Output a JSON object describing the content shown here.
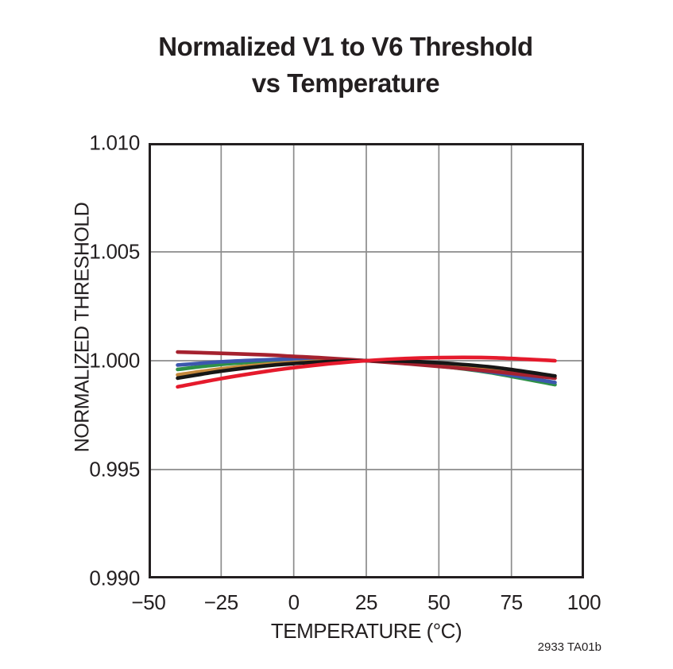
{
  "title": {
    "line1": "Normalized V1 to V6 Threshold",
    "line2": "vs Temperature"
  },
  "footnote": "2933 TA01b",
  "chart_data": {
    "type": "line",
    "title": "Normalized V1 to V6 Threshold vs Temperature",
    "xlabel": "TEMPERATURE (°C)",
    "ylabel": "NORMALIZED THRESHOLD",
    "xlim": [
      -50,
      100
    ],
    "ylim": [
      0.99,
      1.01
    ],
    "x_tick_values": [
      -50,
      -25,
      0,
      25,
      50,
      75,
      100
    ],
    "x_tick_labels": [
      "−50",
      "−25",
      "0",
      "25",
      "50",
      "75",
      "100"
    ],
    "y_tick_values": [
      0.99,
      0.995,
      1.0,
      1.005,
      1.01
    ],
    "y_tick_labels": [
      "0.990",
      "0.995",
      "1.000",
      "1.005",
      "1.010"
    ],
    "grid": true,
    "legend": "none",
    "line_width": 4.6,
    "colors": {
      "frame": "#231F20",
      "grid": "#8C8C8C",
      "text": "#231F20",
      "background": "#FFFFFF"
    },
    "x": [
      -40,
      -25,
      -10,
      0,
      10,
      25,
      40,
      55,
      70,
      90
    ],
    "series": [
      {
        "name": "curve-green",
        "color": "#2E9147",
        "values": [
          0.9996,
          0.99983,
          0.99997,
          1.00002,
          1.00004,
          1.0,
          0.99988,
          0.99968,
          0.9994,
          0.9989
        ]
      },
      {
        "name": "curve-blue",
        "color": "#3C57AE",
        "values": [
          0.9998,
          0.99995,
          1.00004,
          1.00007,
          1.00006,
          1.0,
          0.99988,
          0.99969,
          0.99944,
          0.999
        ]
      },
      {
        "name": "curve-orange",
        "color": "#C4883C",
        "values": [
          0.99935,
          0.99963,
          0.99983,
          0.99992,
          0.99998,
          1.0,
          0.99994,
          0.99981,
          0.9996,
          0.9992
        ]
      },
      {
        "name": "curve-darkred",
        "color": "#A5222F",
        "values": [
          1.0004,
          1.00034,
          1.00027,
          1.0002,
          1.00013,
          1.0,
          0.99985,
          0.99968,
          0.99949,
          0.9992
        ]
      },
      {
        "name": "curve-black",
        "color": "#161616",
        "values": [
          0.9992,
          0.99952,
          0.99976,
          0.99987,
          0.99995,
          1.0,
          0.99997,
          0.99986,
          0.99968,
          0.9993
        ]
      },
      {
        "name": "curve-red",
        "color": "#E51A2C",
        "values": [
          0.9988,
          0.99918,
          0.9995,
          0.99968,
          0.99983,
          1.0,
          1.00011,
          1.00015,
          1.00013,
          1.0
        ]
      }
    ]
  }
}
